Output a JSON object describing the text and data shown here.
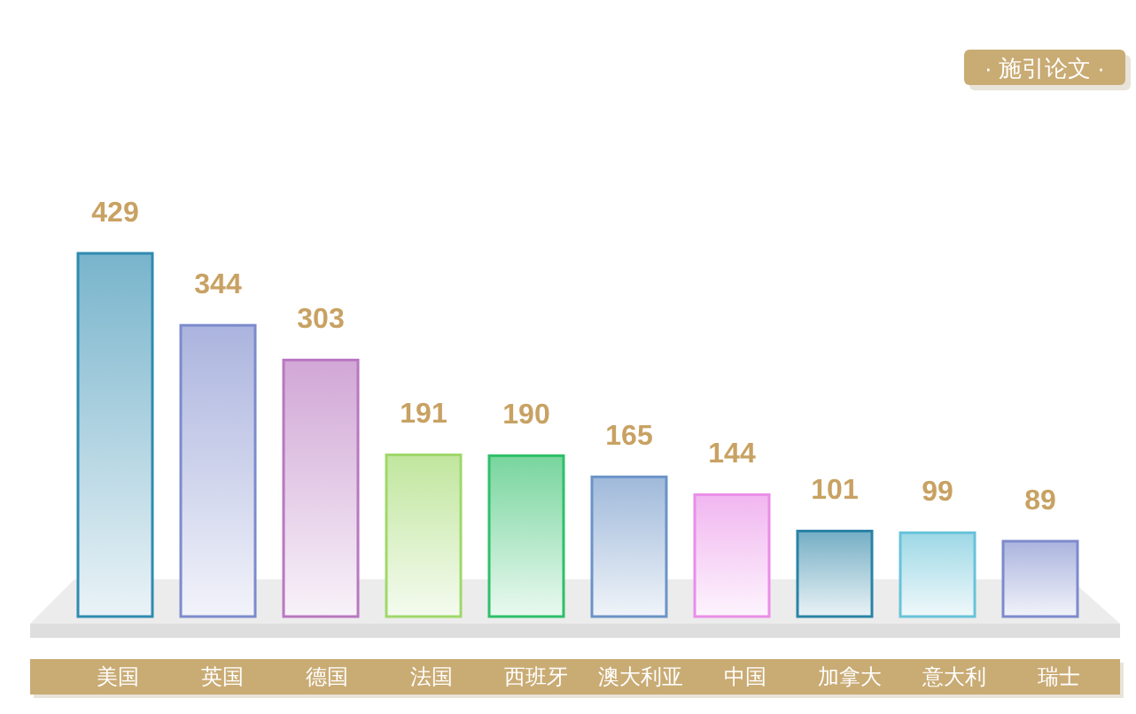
{
  "chart_data": {
    "type": "bar",
    "title": "· 施引论文 ·",
    "categories": [
      "美国",
      "英国",
      "德国",
      "法国",
      "西班牙",
      "澳大利亚",
      "中国",
      "加拿大",
      "意大利",
      "瑞士"
    ],
    "values": [
      429,
      344,
      303,
      191,
      190,
      165,
      144,
      101,
      99,
      89
    ],
    "colors": [
      "#2f8bb0",
      "#7d8bcc",
      "#b878c0",
      "#9fd86a",
      "#2fbf6a",
      "#6b93c6",
      "#e98ee8",
      "#2a83a6",
      "#68c3d9",
      "#7d8bcc"
    ],
    "data_labels": true
  }
}
